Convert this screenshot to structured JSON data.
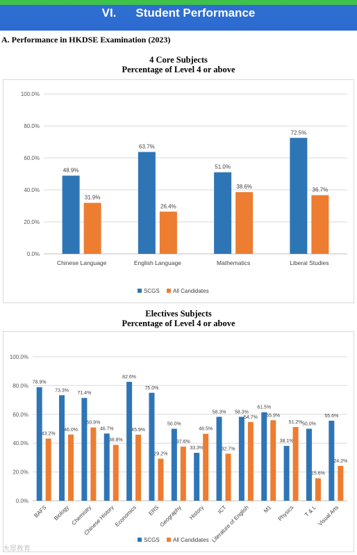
{
  "header": {
    "section_number": "VI.",
    "section_title": "Student Performance",
    "subsection": "A.   Performance in HKDSE Examination (2023)"
  },
  "colors": {
    "scgs": "#2e75b6",
    "all": "#ed7d31",
    "banner": "#2c6ad0",
    "banner_stripe": "#3ec24a"
  },
  "watermark": "大眾教育",
  "chart_data": [
    {
      "type": "bar",
      "title": "4 Core Subjects",
      "subtitle": "Percentage of Level 4 or above",
      "categories": [
        "Chinese Language",
        "English Language",
        "Mathematics",
        "Liberal Studies"
      ],
      "series": [
        {
          "name": "SCGS",
          "values": [
            48.9,
            63.7,
            51.0,
            72.5
          ]
        },
        {
          "name": "All Candidates",
          "values": [
            31.9,
            26.4,
            38.6,
            36.7
          ]
        }
      ],
      "ylim": [
        0,
        100
      ],
      "yticks": [
        "0.0%",
        "20.0%",
        "40.0%",
        "60.0%",
        "80.0%",
        "100.0%"
      ],
      "grid": true,
      "legend": "bottom"
    },
    {
      "type": "bar",
      "title": "Electives Subjects",
      "subtitle": "Percentage of Level 4 or above",
      "categories": [
        "BAFS",
        "Biology",
        "Chemistry",
        "Chinese History",
        "Economics",
        "ERS",
        "Geography",
        "History",
        "ICT",
        "Literature of English",
        "M1",
        "Physics",
        "T & L",
        "Visual Arts"
      ],
      "series": [
        {
          "name": "SCGS",
          "values": [
            78.9,
            73.3,
            71.4,
            46.7,
            82.6,
            75.0,
            50.0,
            33.3,
            58.3,
            58.3,
            61.5,
            38.1,
            50.0,
            55.6
          ]
        },
        {
          "name": "All Candidates",
          "values": [
            43.2,
            46.0,
            50.9,
            38.8,
            45.9,
            29.2,
            37.6,
            46.5,
            32.7,
            54.7,
            55.9,
            51.2,
            15.6,
            24.2
          ]
        }
      ],
      "ylim": [
        0,
        100
      ],
      "yticks": [
        "0.0%",
        "20.0%",
        "40.0%",
        "60.0%",
        "80.0%",
        "100.0%"
      ],
      "grid": true,
      "legend": "bottom"
    }
  ]
}
